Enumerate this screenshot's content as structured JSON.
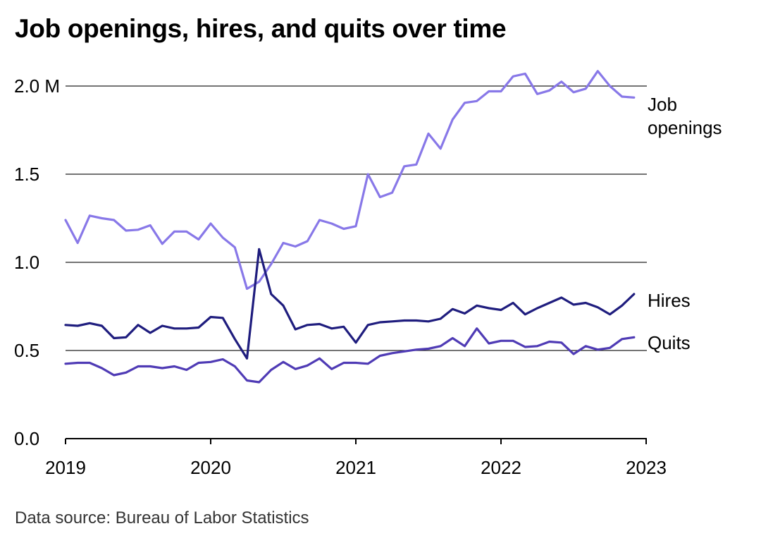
{
  "chart_data": {
    "type": "line",
    "title": "Job openings, hires, and quits over time",
    "source": "Data source: Bureau of Labor Statistics",
    "x_start": "2019-01",
    "x_ticks": [
      "2019",
      "2020",
      "2021",
      "2022",
      "2023"
    ],
    "y_ticks": [
      "0.0",
      "0.5",
      "1.0",
      "1.5",
      "2.0 M"
    ],
    "ylim": [
      0,
      2.0
    ],
    "grid": true,
    "series": [
      {
        "name": "Job openings",
        "label_lines": [
          "Job",
          "openings"
        ],
        "color": "#8878e8",
        "values": [
          1.24,
          1.11,
          1.265,
          1.25,
          1.24,
          1.18,
          1.185,
          1.21,
          1.105,
          1.175,
          1.175,
          1.13,
          1.22,
          1.14,
          1.085,
          0.85,
          0.89,
          0.99,
          1.11,
          1.09,
          1.12,
          1.24,
          1.22,
          1.19,
          1.205,
          1.5,
          1.37,
          1.395,
          1.545,
          1.555,
          1.73,
          1.645,
          1.81,
          1.905,
          1.915,
          1.97,
          1.97,
          2.055,
          2.07,
          1.955,
          1.975,
          2.025,
          1.965,
          1.985,
          2.085,
          2.0,
          1.94,
          1.935
        ]
      },
      {
        "name": "Hires",
        "label_lines": [
          "Hires"
        ],
        "color": "#1f1d7e",
        "values": [
          0.645,
          0.64,
          0.655,
          0.64,
          0.57,
          0.575,
          0.645,
          0.6,
          0.64,
          0.625,
          0.625,
          0.63,
          0.69,
          0.685,
          0.565,
          0.455,
          1.075,
          0.82,
          0.755,
          0.62,
          0.645,
          0.65,
          0.625,
          0.635,
          0.545,
          0.645,
          0.66,
          0.665,
          0.67,
          0.67,
          0.665,
          0.68,
          0.735,
          0.71,
          0.755,
          0.74,
          0.73,
          0.77,
          0.705,
          0.74,
          0.77,
          0.8,
          0.76,
          0.77,
          0.745,
          0.705,
          0.755,
          0.82
        ]
      },
      {
        "name": "Quits",
        "label_lines": [
          "Quits"
        ],
        "color": "#4f3bb5",
        "values": [
          0.425,
          0.43,
          0.43,
          0.4,
          0.36,
          0.375,
          0.41,
          0.41,
          0.4,
          0.41,
          0.39,
          0.43,
          0.435,
          0.45,
          0.41,
          0.33,
          0.32,
          0.39,
          0.435,
          0.395,
          0.415,
          0.455,
          0.395,
          0.43,
          0.43,
          0.425,
          0.47,
          0.485,
          0.495,
          0.505,
          0.51,
          0.525,
          0.57,
          0.525,
          0.625,
          0.54,
          0.555,
          0.555,
          0.52,
          0.525,
          0.55,
          0.545,
          0.48,
          0.525,
          0.505,
          0.515,
          0.565,
          0.575
        ]
      }
    ]
  }
}
